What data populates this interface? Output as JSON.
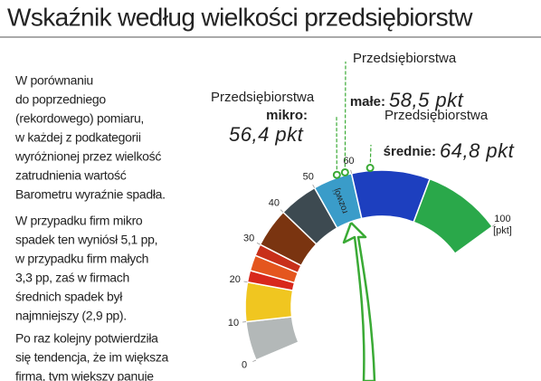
{
  "header": {
    "title": "Wskaźnik według wielkości przedsiębiorstw"
  },
  "text": {
    "paragraphs": [
      {
        "lines": [
          "W porównaniu",
          "do poprzedniego",
          "(rekordowego) pomiaru,",
          "w każdej z podkategorii",
          "wyróżnionej przez wielkość",
          "zatrudnienia wartość",
          "Barometru wyraźnie spadła."
        ]
      },
      {
        "lines": [
          "W przypadku firm mikro",
          "spadek ten wyniósł 5,1 pp,",
          "w przypadku firm małych",
          "3,3 pp, zaś w firmach",
          "średnich spadek był",
          "najmniejszy (2,9 pp)."
        ]
      },
      {
        "lines": [
          "Po raz kolejny potwierdziła",
          "się tendencja, że im większa",
          "firma, tym większy panuje"
        ]
      }
    ]
  },
  "chart_data": {
    "type": "gauge",
    "lim": [
      0,
      100
    ],
    "ticks": [
      0,
      10,
      20,
      30,
      40,
      50,
      60,
      100
    ],
    "unit": "[pkt]",
    "segments": [
      {
        "from": 0,
        "to": 10,
        "color": "#b3b8b8"
      },
      {
        "from": 10,
        "to": 20,
        "color": "#f0c620"
      },
      {
        "from": 20,
        "to": 23,
        "color": "#d8281c"
      },
      {
        "from": 23,
        "to": 27,
        "color": "#e4561e"
      },
      {
        "from": 27,
        "to": 30,
        "color": "#c8301a"
      },
      {
        "from": 30,
        "to": 40,
        "color": "#7a3410"
      },
      {
        "from": 40,
        "to": 50,
        "color": "#3d4a51"
      },
      {
        "from": 50,
        "to": 60,
        "color": "#3a9cc9",
        "label": "rozwój"
      },
      {
        "from": 60,
        "to": 80,
        "color": "#1d3fbf"
      },
      {
        "from": 80,
        "to": 100,
        "color": "#2aa84a"
      }
    ],
    "markers": [
      {
        "title": "Przedsiębiorstwa",
        "name": "mikro:",
        "value": 56.4,
        "value_label": "56,4 pkt",
        "color": "#3aaa35"
      },
      {
        "title": "Przedsiębiorstwa",
        "name": "małe:",
        "value": 58.5,
        "value_label": "58,5 pkt",
        "color": "#3aaa35"
      },
      {
        "title": "Przedsiębiorstwa",
        "name": "średnie:",
        "value": 64.8,
        "value_label": "64,8 pkt",
        "color": "#3aaa35"
      }
    ]
  }
}
